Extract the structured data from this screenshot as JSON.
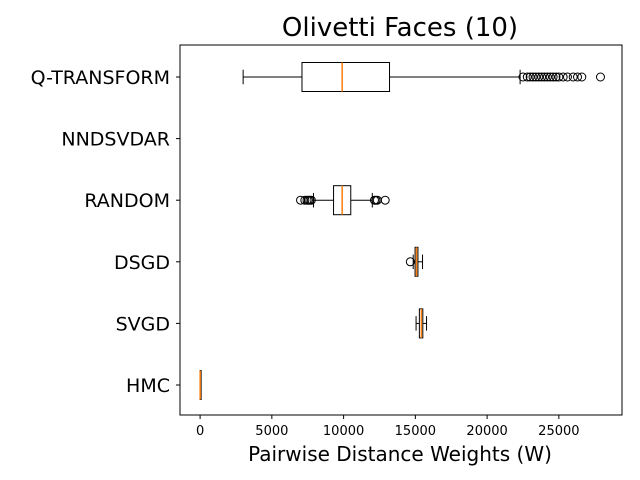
{
  "chart_data": {
    "type": "boxplot",
    "orientation": "horizontal",
    "title": "Olivetti Faces (10)",
    "xlabel": "Pairwise Distance Weights (W)",
    "ylabel": "",
    "xlim": [
      -1400,
      29400
    ],
    "xticks": [
      0,
      5000,
      10000,
      15000,
      20000,
      25000
    ],
    "grid": false,
    "categories": [
      "HMC",
      "SVGD",
      "DSGD",
      "RANDOM",
      "NNDSVDAR",
      "Q-TRANSFORM"
    ],
    "boxes": [
      {
        "label": "HMC",
        "whisker_low": 0,
        "q1": 0,
        "median": 5,
        "q3": 10,
        "whisker_high": 15,
        "fliers": []
      },
      {
        "label": "SVGD",
        "whisker_low": 15050,
        "q1": 15280,
        "median": 15420,
        "q3": 15520,
        "whisker_high": 15780,
        "fliers": []
      },
      {
        "label": "DSGD",
        "whisker_low": 14850,
        "q1": 14980,
        "median": 15080,
        "q3": 15180,
        "whisker_high": 15500,
        "fliers": [
          14650
        ]
      },
      {
        "label": "RANDOM",
        "whisker_low": 7900,
        "q1": 9300,
        "median": 9900,
        "q3": 10500,
        "whisker_high": 12000,
        "fliers": [
          7000,
          7300,
          7450,
          7550,
          7650,
          7750,
          12150,
          12250,
          12350,
          12900
        ]
      },
      {
        "label": "NNDSVDAR",
        "whisker_low": null,
        "q1": null,
        "median": null,
        "q3": null,
        "whisker_high": null,
        "fliers": []
      },
      {
        "label": "Q-TRANSFORM",
        "whisker_low": 3000,
        "q1": 7100,
        "median": 9900,
        "q3": 13200,
        "whisker_high": 22300,
        "fliers": [
          22500,
          22800,
          23000,
          23200,
          23400,
          23600,
          23800,
          24000,
          24200,
          24400,
          24600,
          24800,
          25000,
          25300,
          25600,
          26000,
          26300,
          26600,
          27900
        ]
      }
    ]
  },
  "colors": {
    "median": "#ff7f0e",
    "box": "#000000"
  }
}
